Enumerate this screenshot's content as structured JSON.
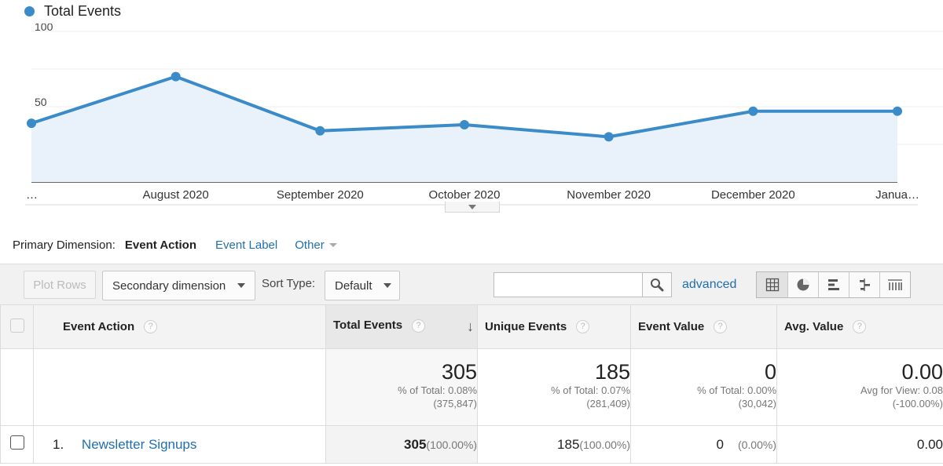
{
  "chart": {
    "legend_label": "Total Events",
    "y_tick_labels": [
      "100",
      "50"
    ],
    "x_labels": [
      "…",
      "August 2020",
      "September 2020",
      "October 2020",
      "November 2020",
      "December 2020",
      "Janua…"
    ]
  },
  "chart_data": {
    "type": "area",
    "series": [
      {
        "name": "Total Events",
        "values": [
          39,
          70,
          34,
          38,
          30,
          47,
          47
        ]
      }
    ],
    "categories": [
      "…",
      "August 2020",
      "September 2020",
      "October 2020",
      "November 2020",
      "December 2020",
      "Janua…"
    ],
    "ylim": [
      0,
      100
    ],
    "y_ticks": [
      100,
      50
    ],
    "grid": true,
    "color": "#3a8bc8",
    "fill_color": "#e9f1fa"
  },
  "dimensions": {
    "label": "Primary Dimension:",
    "active": "Event Action",
    "event_label": "Event Label",
    "other": "Other"
  },
  "toolbar": {
    "plot_rows": "Plot Rows",
    "secondary_dimension": "Secondary dimension",
    "sort_type_label": "Sort Type:",
    "sort_type_value": "Default",
    "search_value": "",
    "advanced": "advanced"
  },
  "table": {
    "headers": {
      "event_action": "Event Action",
      "total_events": "Total Events",
      "unique_events": "Unique Events",
      "event_value": "Event Value",
      "avg_value": "Avg. Value",
      "help": "?",
      "sort_arrow": "↓"
    },
    "totals": {
      "total_events": {
        "value": "305",
        "line1": "% of Total: 0.08%",
        "line2": "(375,847)"
      },
      "unique_events": {
        "value": "185",
        "line1": "% of Total: 0.07%",
        "line2": "(281,409)"
      },
      "event_value": {
        "value": "0",
        "line1": "% of Total: 0.00%",
        "line2": "(30,042)"
      },
      "avg_value": {
        "value": "0.00",
        "line1": "Avg for View: 0.08",
        "line2": "(-100.00%)"
      }
    },
    "rows": [
      {
        "index": "1.",
        "event_action": "Newsletter Signups",
        "total_events": "305",
        "total_events_pct": "(100.00%)",
        "unique_events": "185",
        "unique_events_pct": "(100.00%)",
        "event_value": "0",
        "event_value_pct": "(0.00%)",
        "avg_value": "0.00"
      }
    ]
  },
  "colors": {
    "accent": "#3a8bc8",
    "link": "#1f6fb0"
  }
}
